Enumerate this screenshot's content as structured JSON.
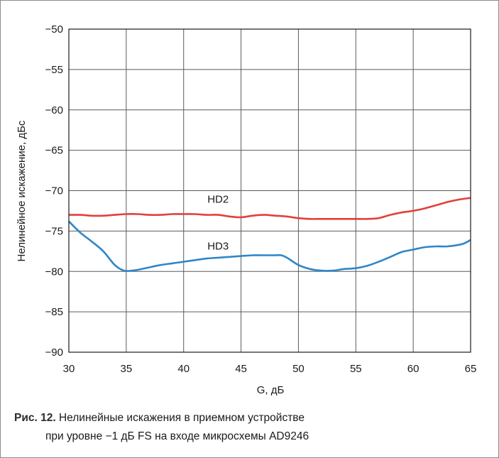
{
  "caption": {
    "label": "Рис. 12.",
    "line1": "Нелинейные искажения в приемном устройстве",
    "line2": "при уровне −1 дБ FS на входе микросхемы AD9246"
  },
  "chart_data": {
    "type": "line",
    "title": "",
    "xlabel": "G, дБ",
    "ylabel": "Нелинейное искажение, дБс",
    "xlim": [
      30,
      65
    ],
    "ylim": [
      -90,
      -50
    ],
    "xticks": [
      30,
      35,
      40,
      45,
      50,
      55,
      60,
      65
    ],
    "yticks": [
      -50,
      -55,
      -60,
      -65,
      -70,
      -75,
      -80,
      -85,
      -90
    ],
    "x_tick_labels": [
      "30",
      "35",
      "40",
      "45",
      "50",
      "55",
      "60",
      "65"
    ],
    "y_tick_labels": [
      "−50",
      "−55",
      "−60",
      "−65",
      "−70",
      "−75",
      "−80",
      "−85",
      "−90"
    ],
    "grid": true,
    "series": [
      {
        "name": "HD2",
        "color": "#e0413c",
        "x": [
          30,
          31,
          32,
          33,
          34,
          35,
          36,
          37,
          38,
          39,
          40,
          41,
          42,
          43,
          44,
          45,
          46,
          47,
          48,
          49,
          50,
          51,
          52,
          53,
          54,
          55,
          56,
          57,
          58,
          59,
          60,
          61,
          62,
          63,
          64,
          65
        ],
        "y": [
          -73.0,
          -73.0,
          -73.1,
          -73.1,
          -73.0,
          -72.9,
          -72.9,
          -73.0,
          -73.0,
          -72.9,
          -72.9,
          -72.9,
          -73.0,
          -73.0,
          -73.2,
          -73.3,
          -73.1,
          -73.0,
          -73.1,
          -73.2,
          -73.4,
          -73.5,
          -73.5,
          -73.5,
          -73.5,
          -73.5,
          -73.5,
          -73.4,
          -73.0,
          -72.7,
          -72.5,
          -72.2,
          -71.8,
          -71.4,
          -71.1,
          -70.9
        ]
      },
      {
        "name": "HD3",
        "color": "#2f86c8",
        "x": [
          30,
          31,
          32,
          33,
          34,
          34.8,
          35.5,
          36,
          37,
          38,
          39,
          40,
          41,
          42,
          43,
          44,
          45,
          46,
          47,
          48,
          48.5,
          49,
          50,
          51,
          52,
          53,
          54,
          55,
          56,
          57,
          58,
          59,
          60,
          61,
          62,
          63,
          64,
          64.5,
          65
        ],
        "y": [
          -73.8,
          -75.2,
          -76.3,
          -77.5,
          -79.2,
          -79.9,
          -79.9,
          -79.8,
          -79.5,
          -79.2,
          -79.0,
          -78.8,
          -78.6,
          -78.4,
          -78.3,
          -78.2,
          -78.1,
          -78.0,
          -78.0,
          -78.0,
          -78.0,
          -78.3,
          -79.2,
          -79.7,
          -79.9,
          -79.9,
          -79.7,
          -79.6,
          -79.3,
          -78.8,
          -78.2,
          -77.6,
          -77.3,
          -77.0,
          -76.9,
          -76.9,
          -76.7,
          -76.5,
          -76.1
        ]
      }
    ],
    "annotations": [
      {
        "text": "HD2",
        "x": 43,
        "y": -71.5
      },
      {
        "text": "HD3",
        "x": 43,
        "y": -77.3
      }
    ]
  }
}
